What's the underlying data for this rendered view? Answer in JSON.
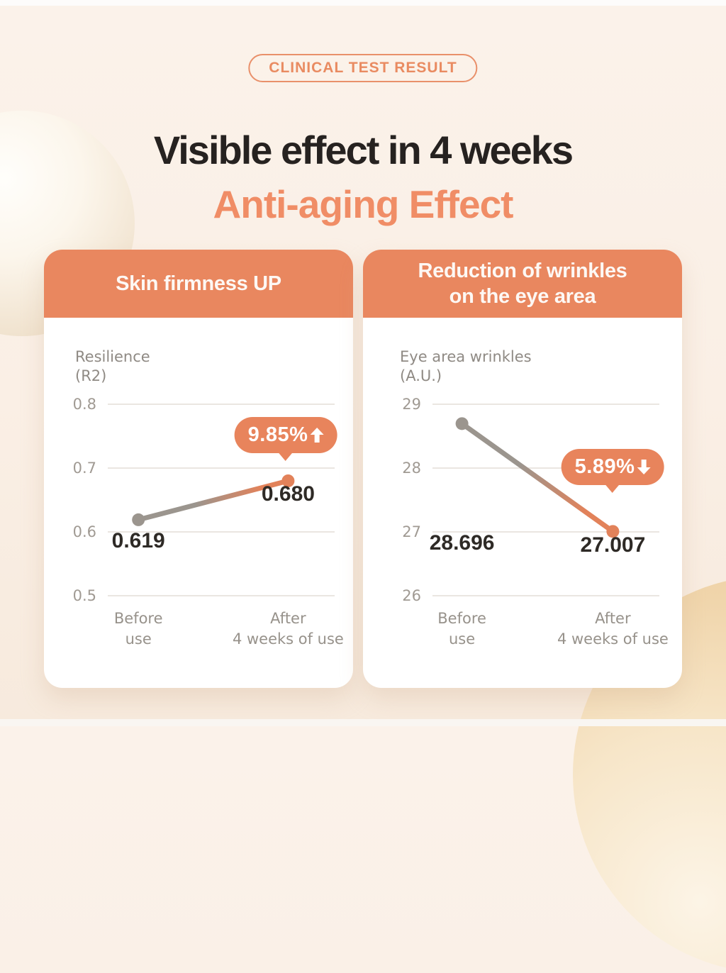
{
  "page": {
    "badge_label": "CLINICAL TEST RESULT",
    "title": "Visible effect in 4 weeks",
    "subtitle": "Anti-aging Effect"
  },
  "colors": {
    "background": "#FAEFE5",
    "accent_orange": "#E8845C",
    "header_orange": "#E9875F",
    "title_dark": "#262220",
    "subtitle_orange": "#F08D66",
    "gray_point": "#9B958E",
    "orange_point": "#E2825A",
    "grid_line": "#EAE6E1",
    "axis_text": "#A09A93",
    "value_text": "#2E2A26",
    "card_background": "#FFFFFF"
  },
  "chart_data": [
    {
      "type": "line",
      "title": "Skin firmness UP",
      "ylabel": "Resilience\n(R2)",
      "categories": [
        "Before\nuse",
        "After\n4 weeks of use"
      ],
      "values": [
        0.619,
        0.68
      ],
      "value_labels": [
        "0.619",
        "0.680"
      ],
      "yticks": [
        "0.8",
        "0.7",
        "0.6",
        "0.5"
      ],
      "ylim": [
        0.5,
        0.8
      ],
      "grid": true,
      "legend": "none",
      "badge": {
        "text": "9.85%",
        "direction": "up"
      }
    },
    {
      "type": "line",
      "title": "Reduction of wrinkles\non the eye area",
      "ylabel": "Eye area wrinkles\n(A.U.)",
      "categories": [
        "Before\nuse",
        "After\n4 weeks of use"
      ],
      "values": [
        28.696,
        27.007
      ],
      "value_labels": [
        "28.696",
        "27.007"
      ],
      "yticks": [
        "29",
        "28",
        "27",
        "26"
      ],
      "ylim": [
        26,
        29
      ],
      "grid": true,
      "legend": "none",
      "badge": {
        "text": "5.89%",
        "direction": "down"
      }
    }
  ]
}
